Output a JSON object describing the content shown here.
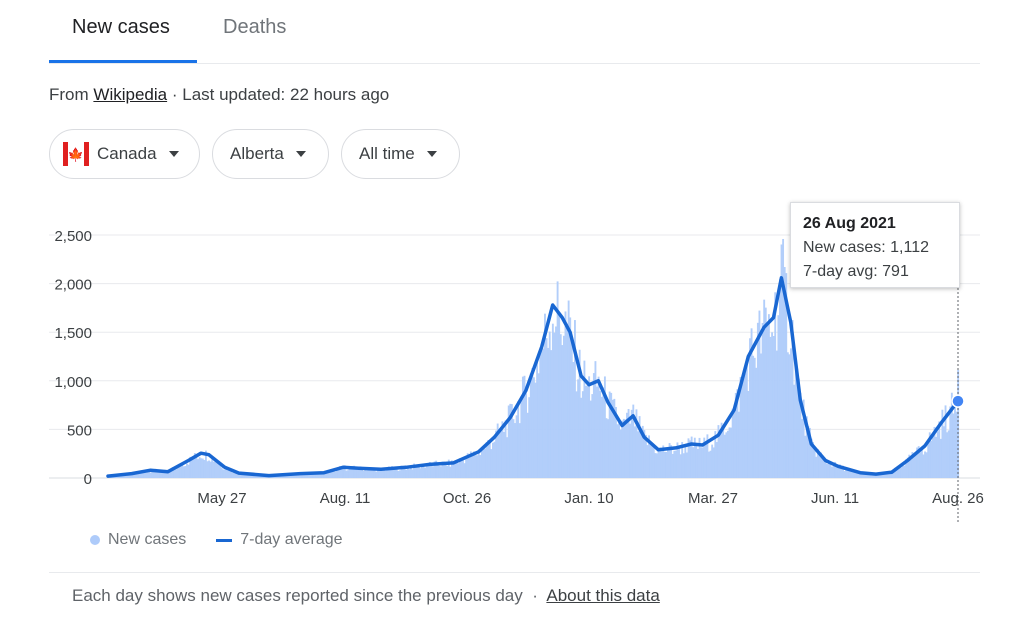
{
  "tabs": [
    {
      "label": "New cases",
      "active": true
    },
    {
      "label": "Deaths",
      "active": false
    }
  ],
  "source": {
    "prefix": "From",
    "link": "Wikipedia",
    "separator": "·",
    "updated": "Last updated: 22 hours ago"
  },
  "filters": {
    "country": {
      "label": "Canada",
      "icon": "canada-flag-icon"
    },
    "region": {
      "label": "Alberta"
    },
    "range": {
      "label": "All time"
    }
  },
  "tooltip": {
    "title": "26 Aug 2021",
    "line1": "New cases: 1,112",
    "line2": "7-day avg: 791"
  },
  "legend": {
    "cases": "New cases",
    "avg": "7-day average"
  },
  "footer": {
    "text": "Each day shows new cases reported since the previous day",
    "separator": "·",
    "link": "About this data"
  },
  "colors": {
    "bars": "#aecbfa",
    "line": "#1967d2",
    "tab_accent": "#1a73e8"
  },
  "chart_data": {
    "type": "bar",
    "title": "",
    "xlabel": "",
    "ylabel": "",
    "ylim": [
      0,
      2500
    ],
    "yticks": [
      "0",
      "500",
      "1,000",
      "1,500",
      "2,000",
      "2,500"
    ],
    "xticks": [
      "May 27",
      "Aug. 11",
      "Oct. 26",
      "Jan. 10",
      "Mar. 27",
      "Jun. 11",
      "Aug. 26"
    ],
    "grid": true,
    "legend": "bottom-left",
    "series": [
      {
        "name": "New cases",
        "type": "bar",
        "color": "#aecbfa"
      },
      {
        "name": "7-day average",
        "type": "line",
        "color": "#1967d2"
      }
    ],
    "start_date": "2020-03-05",
    "end_date": "2021-08-26",
    "avg_points": [
      [
        "2020-03-05",
        20
      ],
      [
        "2020-03-20",
        45
      ],
      [
        "2020-04-01",
        80
      ],
      [
        "2020-04-12",
        65
      ],
      [
        "2020-04-25",
        180
      ],
      [
        "2020-05-03",
        255
      ],
      [
        "2020-05-08",
        240
      ],
      [
        "2020-05-18",
        110
      ],
      [
        "2020-05-27",
        50
      ],
      [
        "2020-06-15",
        25
      ],
      [
        "2020-07-05",
        45
      ],
      [
        "2020-07-20",
        55
      ],
      [
        "2020-08-01",
        110
      ],
      [
        "2020-08-11",
        100
      ],
      [
        "2020-08-25",
        90
      ],
      [
        "2020-09-10",
        110
      ],
      [
        "2020-09-25",
        140
      ],
      [
        "2020-10-10",
        155
      ],
      [
        "2020-10-26",
        270
      ],
      [
        "2020-11-05",
        420
      ],
      [
        "2020-11-15",
        620
      ],
      [
        "2020-11-25",
        900
      ],
      [
        "2020-12-05",
        1350
      ],
      [
        "2020-12-12",
        1780
      ],
      [
        "2020-12-18",
        1650
      ],
      [
        "2020-12-23",
        1500
      ],
      [
        "2020-12-30",
        1050
      ],
      [
        "2021-01-04",
        960
      ],
      [
        "2021-01-10",
        1000
      ],
      [
        "2021-01-16",
        780
      ],
      [
        "2021-01-25",
        540
      ],
      [
        "2021-02-01",
        640
      ],
      [
        "2021-02-08",
        420
      ],
      [
        "2021-02-17",
        290
      ],
      [
        "2021-02-28",
        310
      ],
      [
        "2021-03-10",
        350
      ],
      [
        "2021-03-17",
        340
      ],
      [
        "2021-03-27",
        440
      ],
      [
        "2021-04-06",
        700
      ],
      [
        "2021-04-15",
        1250
      ],
      [
        "2021-04-25",
        1550
      ],
      [
        "2021-05-01",
        1650
      ],
      [
        "2021-05-06",
        2060
      ],
      [
        "2021-05-12",
        1600
      ],
      [
        "2021-05-18",
        800
      ],
      [
        "2021-05-25",
        350
      ],
      [
        "2021-06-03",
        180
      ],
      [
        "2021-06-11",
        120
      ],
      [
        "2021-06-25",
        55
      ],
      [
        "2021-07-05",
        40
      ],
      [
        "2021-07-15",
        60
      ],
      [
        "2021-07-25",
        180
      ],
      [
        "2021-08-05",
        330
      ],
      [
        "2021-08-15",
        560
      ],
      [
        "2021-08-26",
        791
      ]
    ],
    "highlight": {
      "date": "2021-08-26",
      "new_cases": 1112,
      "avg": 791
    }
  }
}
